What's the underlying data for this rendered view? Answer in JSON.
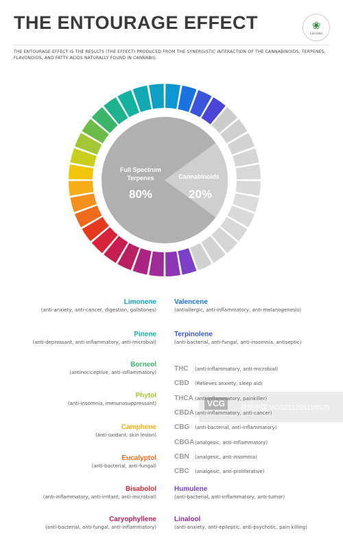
{
  "title": "THE ENTOURAGE EFFECT",
  "logo_text": "Cannabis",
  "intro": "The Entourage Effect is the results (the effect) produced from the synergistic interaction of the cannabinoids, terpenes, flavonoids, and fatty acids naturally found in cannabis.",
  "wheel": {
    "terpenes_label": "Full Spectrum Terpenes",
    "terpenes_value": "80%",
    "cannabinoids_label": "Cannabinoids",
    "cannabinoids_value": "20%",
    "terpenes_percent": 80,
    "cannabinoids_percent": 20,
    "segment_colors": [
      "#0d96d4",
      "#1a73e0",
      "#3a55dc",
      "#4a45d8",
      "#cdcdcd",
      "#d0d0d0",
      "#d3d3d3",
      "#d6d6d6",
      "#d8d8d8",
      "#dadada",
      "#dcdcdc",
      "#dadada",
      "#d8d8d8",
      "#d6d6d6",
      "#d3d3d3",
      "#d0d0d0",
      "#7b3fc8",
      "#8e34b6",
      "#9e2b98",
      "#ad2582",
      "#b8205f",
      "#c51e4f",
      "#d8243a",
      "#e63a1f",
      "#ef6a1a",
      "#f4901d",
      "#f7ad15",
      "#f4c60a",
      "#c9cf1f",
      "#a3c634",
      "#6bbb48",
      "#3bb56a",
      "#1fb28f",
      "#14b0a0",
      "#12a9b4",
      "#0e9fc4"
    ]
  },
  "terpenes_left": [
    {
      "name": "Limonene",
      "desc": "(anti-anxiety, anti-cancer, digestion, gallstones)",
      "color": "#0e9fc4"
    },
    {
      "name": "Pinene",
      "desc": "(anti-depressant, anti-inflammatory, anti-microbial)",
      "color": "#14b0a0"
    },
    {
      "name": "Borneol",
      "desc": "(antinociceptive, anti-inflammatory)",
      "color": "#3bb56a"
    },
    {
      "name": "Phytol",
      "desc": "(anti-insomnia, immunosuppressant)",
      "color": "#a3c634"
    },
    {
      "name": "Camphene",
      "desc": "(anti-oxidant, skin lesion)",
      "color": "#f4b10b"
    },
    {
      "name": "Eucalyptol",
      "desc": "(anti-bacterial, anti-fungal)",
      "color": "#ef6a1a"
    },
    {
      "name": "Bisabolol",
      "desc": "(anti-inflammatory, anti-irritant, anti-microbial)",
      "color": "#d8243a"
    },
    {
      "name": "Caryophyllene",
      "desc": "(anti-bacterial, anti-fungal, anti-inflammatory)",
      "color": "#b8205f"
    }
  ],
  "terpenes_right": [
    {
      "name": "Valencene",
      "desc": "(antiallergic, anti-inflammatory, anti-melanogenesis)",
      "color": "#1a73e0"
    },
    {
      "name": "Terpinolene",
      "desc": "(anti-bacterial, anti-fungal, anti-insomnia, antiseptic)",
      "color": "#3a55dc"
    },
    {
      "name": "Humulene",
      "desc": "(anti-bacterial, anti-inflammatory, anti-tumor)",
      "color": "#7b3fc8"
    },
    {
      "name": "Linalool",
      "desc": "(anti-anxiety, anti-epileptic, anti-psychotic, pain killing)",
      "color": "#9e2b98"
    }
  ],
  "cannabinoids": [
    {
      "abbr": "THC",
      "desc": "(anti-inflammatory, anti-microbial)"
    },
    {
      "abbr": "CBD",
      "desc": "(Relieves anxiety, sleep aid)"
    },
    {
      "abbr": "THCA",
      "desc": "(anti-inflammatory, painkiller)"
    },
    {
      "abbr": "CBDA",
      "desc": "(anti-inflammatory, anti-cancer)"
    },
    {
      "abbr": "CBG",
      "desc": "(anti-bacterial, anti-inflammatory)"
    },
    {
      "abbr": "CBGA",
      "desc": "(analgesic, anti-inflammatory)"
    },
    {
      "abbr": "CBN",
      "desc": "(analgesic, anti-insomnia)"
    },
    {
      "abbr": "CBC",
      "desc": "(analgesic, anti-proliferative)"
    }
  ],
  "watermark": {
    "badge": "VCG",
    "text": "视觉中国 VCG211285198579"
  }
}
